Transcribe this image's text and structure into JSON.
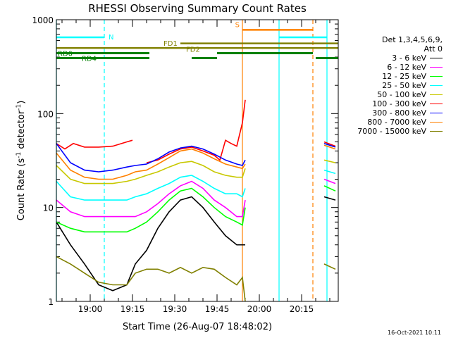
{
  "chart_data": {
    "type": "line",
    "title": "RHESSI Observing Summary Count Rates",
    "xlabel": "Start Time (26-Aug-07 18:48:02)",
    "ylabel_main": "Count Rate (s",
    "ylabel_exp1": "-1",
    "ylabel_mid": " detector",
    "ylabel_exp2": "-1",
    "ylabel_end": ")",
    "y_scale": "log",
    "ylim": [
      1,
      1000
    ],
    "xlim_minutes": [
      0,
      100
    ],
    "x_ticks": [
      {
        "label": "19:00",
        "minutes": 12
      },
      {
        "label": "19:15",
        "minutes": 27
      },
      {
        "label": "19:30",
        "minutes": 42
      },
      {
        "label": "19:45",
        "minutes": 57
      },
      {
        "label": "20:00",
        "minutes": 72
      },
      {
        "label": "20:15",
        "minutes": 87
      }
    ],
    "y_ticks": [
      {
        "label": "1000",
        "value": 1000
      },
      {
        "label": "100",
        "value": 100
      },
      {
        "label": "10",
        "value": 10
      },
      {
        "label": "1",
        "value": 1
      }
    ],
    "legend_header": [
      "Det 1,3,4,5,6,9,",
      "Att 0"
    ],
    "series": [
      {
        "name": "3 - 6 keV",
        "color": "#000000",
        "x": [
          0,
          5,
          10,
          15,
          20,
          25,
          28,
          32,
          36,
          40,
          44,
          48,
          52,
          56,
          60,
          64,
          66,
          67,
          92,
          95,
          99
        ],
        "y": [
          7,
          4,
          2.5,
          1.5,
          1.3,
          1.5,
          2.5,
          3.5,
          6,
          9,
          12,
          13,
          10,
          7,
          5,
          4,
          4,
          4,
          null,
          13,
          12
        ]
      },
      {
        "name": "6 - 12 keV",
        "color": "#ff00ff",
        "x": [
          0,
          5,
          10,
          15,
          20,
          25,
          28,
          32,
          36,
          40,
          44,
          48,
          52,
          56,
          60,
          64,
          66,
          67,
          92,
          95,
          99
        ],
        "y": [
          12,
          9,
          8,
          8,
          8,
          8,
          8,
          9,
          11,
          14,
          17,
          19,
          16,
          12,
          10,
          8,
          8,
          12,
          null,
          20,
          18
        ]
      },
      {
        "name": "12 - 25 keV",
        "color": "#00ff00",
        "x": [
          0,
          5,
          10,
          15,
          20,
          25,
          28,
          32,
          36,
          40,
          44,
          48,
          52,
          56,
          60,
          64,
          66,
          67,
          92,
          95,
          99
        ],
        "y": [
          7,
          6,
          5.5,
          5.5,
          5.5,
          5.5,
          6,
          7,
          9,
          12,
          15,
          16,
          13,
          10,
          8,
          7,
          6.5,
          10,
          null,
          17,
          15
        ]
      },
      {
        "name": "25 - 50 keV",
        "color": "#00ffff",
        "x": [
          0,
          5,
          10,
          15,
          20,
          25,
          28,
          32,
          36,
          40,
          44,
          48,
          52,
          56,
          60,
          64,
          66,
          67,
          92,
          95,
          99
        ],
        "y": [
          19,
          13,
          12,
          12,
          12,
          12,
          13,
          14,
          16,
          18,
          21,
          22,
          19,
          16,
          14,
          14,
          13,
          16,
          null,
          25,
          23
        ]
      },
      {
        "name": "50 - 100 keV",
        "color": "#c8c800",
        "x": [
          0,
          5,
          10,
          15,
          20,
          25,
          28,
          32,
          36,
          40,
          44,
          48,
          52,
          56,
          60,
          64,
          66,
          67,
          92,
          95,
          99
        ],
        "y": [
          28,
          20,
          18,
          18,
          18,
          19,
          20,
          22,
          24,
          27,
          30,
          31,
          28,
          24,
          22,
          21,
          21,
          26,
          null,
          32,
          30
        ]
      },
      {
        "name": "100 - 300 keV",
        "color": "#ff0000",
        "x": [
          0,
          3,
          6,
          10,
          15,
          20,
          25,
          27,
          27.1,
          32,
          36,
          40,
          44,
          48,
          52,
          56,
          58,
          60,
          62,
          64,
          66,
          67,
          92,
          95,
          99
        ],
        "y": [
          48,
          42,
          48,
          44,
          44,
          45,
          50,
          52,
          null,
          30,
          32,
          37,
          42,
          44,
          40,
          36,
          32,
          52,
          48,
          45,
          80,
          140,
          null,
          50,
          45
        ]
      },
      {
        "name": "300 - 800 keV",
        "color": "#0000ff",
        "x": [
          0,
          5,
          10,
          15,
          20,
          25,
          28,
          32,
          36,
          40,
          44,
          48,
          52,
          56,
          60,
          64,
          66,
          67,
          92,
          95,
          99
        ],
        "y": [
          48,
          30,
          25,
          24,
          25,
          27,
          28,
          29,
          33,
          39,
          43,
          45,
          42,
          37,
          32,
          29,
          28,
          32,
          null,
          48,
          44
        ]
      },
      {
        "name": "800 - 7000 keV",
        "color": "#ff8000",
        "x": [
          0,
          5,
          10,
          15,
          20,
          25,
          28,
          32,
          36,
          40,
          44,
          48,
          52,
          56,
          60,
          64,
          66,
          67,
          92,
          95,
          99
        ],
        "y": [
          38,
          25,
          21,
          20,
          20,
          22,
          24,
          25,
          29,
          34,
          40,
          42,
          38,
          33,
          29,
          27,
          26,
          29,
          null,
          46,
          42
        ]
      },
      {
        "name": "7000 - 15000 keV",
        "color": "#808000",
        "x": [
          0,
          5,
          10,
          15,
          20,
          25,
          28,
          32,
          36,
          40,
          44,
          48,
          52,
          56,
          60,
          64,
          66,
          67,
          92,
          95,
          99
        ],
        "y": [
          3,
          2.5,
          2,
          1.6,
          1.5,
          1.5,
          2,
          2.2,
          2.2,
          2,
          2.3,
          2,
          2.3,
          2.2,
          1.8,
          1.5,
          1.8,
          1,
          null,
          2.5,
          2.2
        ]
      }
    ],
    "annotations": {
      "night_N": {
        "label": "N",
        "color": "#00ffff",
        "segments": [
          [
            0,
            17
          ],
          [
            79,
            96
          ]
        ],
        "y_value": 650,
        "marker_minutes": 17
      },
      "saa_S": {
        "label": "S",
        "color": "#ff8000",
        "segments": [
          [
            66,
            91
          ]
        ],
        "y_value": 780
      },
      "fd1": {
        "label": "FD1",
        "color": "#808000",
        "segments": [
          [
            0,
            100
          ]
        ],
        "y_value": 500
      },
      "fd2": {
        "label": "FD2",
        "color": "#808000",
        "segments": [
          [
            44,
            100
          ]
        ],
        "y_value": 560
      },
      "rd0": {
        "label": "RD0",
        "color": "#008000",
        "segments": [
          [
            0,
            33
          ],
          [
            57,
            91
          ]
        ],
        "y_value": 440
      },
      "rd4": {
        "label": "RD4",
        "color": "#008000",
        "segments": [
          [
            0,
            33
          ],
          [
            48,
            57
          ],
          [
            92,
            100
          ]
        ],
        "y_value": 390
      },
      "vlines_cyan": [
        0,
        79,
        96
      ],
      "vlines_cyan_dashed": [
        17
      ],
      "vlines_orange": [
        66
      ],
      "vlines_orange_dashed": [
        91
      ]
    },
    "grid": false,
    "legend_position": "right"
  },
  "footer": {
    "timestamp": "16-Oct-2021 10:11"
  }
}
